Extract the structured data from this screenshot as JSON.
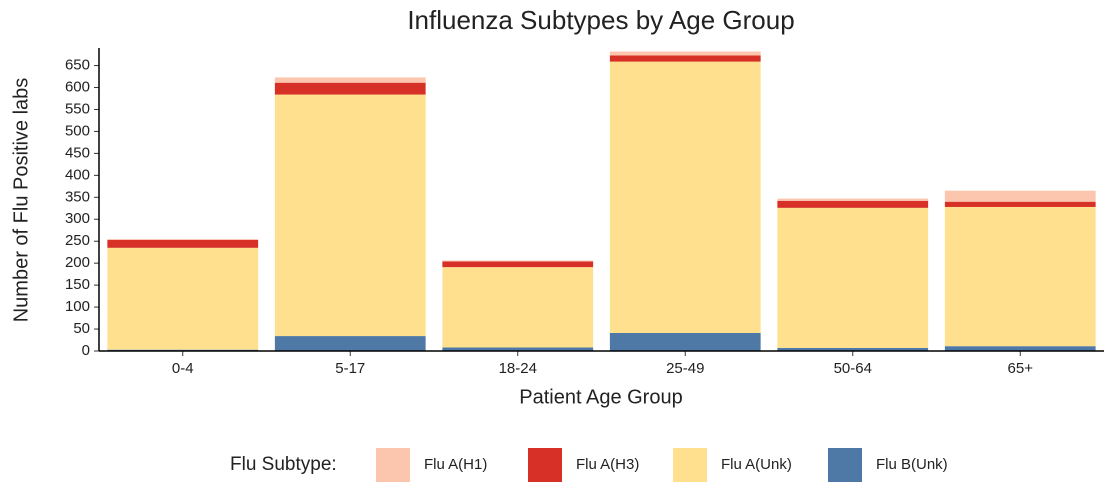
{
  "chart_data": {
    "type": "stacked-bar",
    "title": "Influenza Subtypes by Age Group",
    "x_label": "Patient Age Group",
    "y_label": "Number of Flu Positive labs",
    "legend_title": "Flu Subtype:",
    "categories": [
      "0-4",
      "5-17",
      "18-24",
      "25-49",
      "50-64",
      "65+"
    ],
    "series": [
      {
        "name": "Flu B(Unk)",
        "color": "#4e79a7",
        "values": [
          3,
          34,
          8,
          41,
          7,
          11
        ]
      },
      {
        "name": "Flu A(Unk)",
        "color": "#fee08f",
        "values": [
          232,
          550,
          183,
          618,
          319,
          317
        ]
      },
      {
        "name": "Flu A(H3)",
        "color": "#d73027",
        "values": [
          18,
          27,
          13,
          14,
          16,
          12
        ]
      },
      {
        "name": "Flu A(H1)",
        "color": "#fcc5ae",
        "values": [
          2,
          12,
          2,
          9,
          5,
          25
        ]
      }
    ],
    "legend_order": [
      3,
      2,
      1,
      0
    ],
    "ylim": [
      0,
      690
    ],
    "yticks": [
      0,
      50,
      100,
      150,
      200,
      250,
      300,
      350,
      400,
      450,
      500,
      550,
      600,
      650
    ]
  }
}
